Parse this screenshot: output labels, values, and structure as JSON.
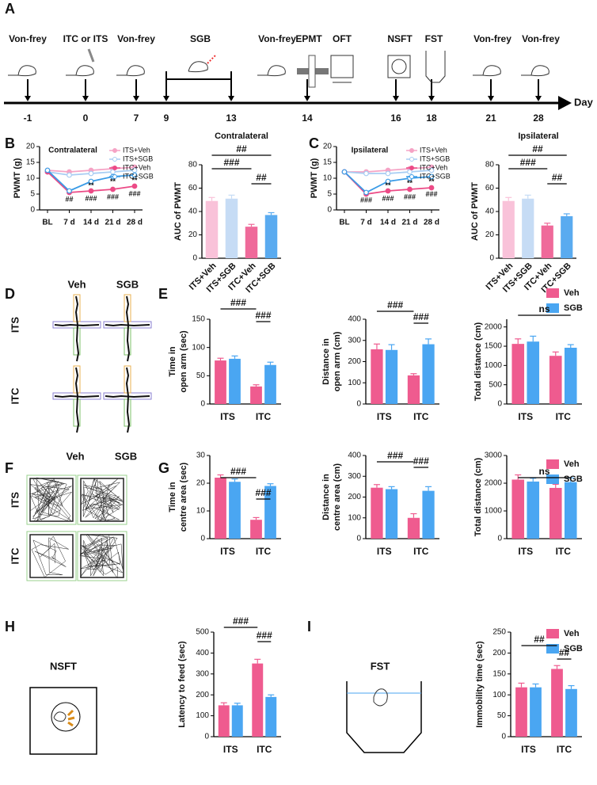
{
  "panels": [
    "A",
    "B",
    "C",
    "D",
    "E",
    "F",
    "G",
    "H",
    "I"
  ],
  "timeline": {
    "labels": [
      "Von-frey",
      "ITC or ITS",
      "Von-frey",
      "SGB",
      "Von-frey",
      "EPMT",
      "OFT",
      "NSFT",
      "FST",
      "Von-frey",
      "Von-frey"
    ],
    "days": [
      -1,
      0,
      7,
      9,
      13,
      14,
      16,
      18,
      21,
      28
    ],
    "unit": "Day"
  },
  "schematics": {
    "maze": {
      "columns": [
        "Veh",
        "SGB"
      ],
      "rows": [
        "ITS",
        "ITC"
      ]
    },
    "open_field": {
      "columns": [
        "Veh",
        "SGB"
      ],
      "rows": [
        "ITS",
        "ITC"
      ]
    },
    "nsft": "NSFT",
    "fst": "FST"
  },
  "chart_data": [
    {
      "type": "line",
      "title": "Contralateral",
      "ylabel": "PWMT (g)",
      "categories": [
        "BL",
        "7 d",
        "14 d",
        "21 d",
        "28 d"
      ],
      "ylim": [
        0,
        20
      ],
      "yticks": [
        0,
        5,
        10,
        15,
        20
      ],
      "series": [
        {
          "name": "ITS+Veh",
          "color": "#f5a3c5",
          "values": [
            12.5,
            12,
            12.5,
            13,
            13.5
          ]
        },
        {
          "name": "ITS+SGB",
          "color": "#a8cdf3",
          "values": [
            12,
            11,
            11.5,
            12,
            12.5
          ]
        },
        {
          "name": "ITC+Veh",
          "color": "#ec4a86",
          "values": [
            12,
            5.5,
            6,
            6.5,
            7.5
          ]
        },
        {
          "name": "ITC+SGB",
          "color": "#3a9be6",
          "values": [
            12.5,
            6,
            9,
            10.5,
            11
          ]
        }
      ],
      "annotations": [
        "##",
        "**",
        "**",
        "**",
        "###",
        "###",
        "###"
      ]
    },
    {
      "type": "bar",
      "title": "Contralateral",
      "ylabel": "AUC of PWMT",
      "categories": [
        "ITS+Veh",
        "ITS+SGB",
        "ITC+Veh",
        "ITC+SGB"
      ],
      "colors": [
        "#f9c2d9",
        "#c6dcf5",
        "#ef6a9a",
        "#5aabf0"
      ],
      "values": [
        49,
        51,
        27,
        37
      ],
      "errors": [
        3,
        3,
        2,
        2
      ],
      "ylim": [
        0,
        80
      ],
      "yticks": [
        0,
        20,
        40,
        60,
        80
      ],
      "annotations": [
        "##",
        "###",
        "##"
      ]
    },
    {
      "type": "line",
      "title": "Ipsilateral",
      "ylabel": "PWMT (g)",
      "categories": [
        "BL",
        "7 d",
        "14 d",
        "21 d",
        "28 d"
      ],
      "ylim": [
        0,
        20
      ],
      "yticks": [
        0,
        5,
        10,
        15,
        20
      ],
      "series": [
        {
          "name": "ITS+Veh",
          "color": "#f5a3c5",
          "values": [
            12,
            12,
            12.5,
            13,
            13.5
          ]
        },
        {
          "name": "ITS+SGB",
          "color": "#a8cdf3",
          "values": [
            12,
            11.5,
            11.5,
            12,
            12.5
          ]
        },
        {
          "name": "ITC+Veh",
          "color": "#ec4a86",
          "values": [
            12,
            5,
            6,
            6.5,
            7
          ]
        },
        {
          "name": "ITC+SGB",
          "color": "#3a9be6",
          "values": [
            12,
            5.5,
            9,
            10,
            10.5
          ]
        }
      ],
      "annotations": [
        "###",
        "**",
        "**",
        "**",
        "###",
        "###",
        "###"
      ]
    },
    {
      "type": "bar",
      "title": "Ipsilateral",
      "ylabel": "AUC of PWMT",
      "categories": [
        "ITS+Veh",
        "ITS+SGB",
        "ITC+Veh",
        "ITC+SGB"
      ],
      "colors": [
        "#f9c2d9",
        "#c6dcf5",
        "#ef6a9a",
        "#5aabf0"
      ],
      "values": [
        49,
        51,
        28,
        36
      ],
      "errors": [
        3,
        3,
        2,
        2
      ],
      "ylim": [
        0,
        80
      ],
      "yticks": [
        0,
        20,
        40,
        60,
        80
      ],
      "annotations": [
        "##",
        "###",
        "##"
      ]
    },
    {
      "type": "bar",
      "ylabel": [
        "Time in",
        "open arm (sec)"
      ],
      "categories": [
        "ITS",
        "ITC"
      ],
      "series": [
        {
          "color": "#ef5b8f",
          "values": [
            77,
            31
          ],
          "errors": [
            4,
            3
          ]
        },
        {
          "color": "#4aa6f2",
          "values": [
            80,
            69
          ],
          "errors": [
            5,
            5
          ]
        }
      ],
      "ylim": [
        0,
        150
      ],
      "yticks": [
        0,
        50,
        100,
        150
      ],
      "annotations": [
        "###",
        "###"
      ]
    },
    {
      "type": "bar",
      "ylabel": [
        "Distance in",
        "open arm (cm)"
      ],
      "categories": [
        "ITS",
        "ITC"
      ],
      "series": [
        {
          "color": "#ef5b8f",
          "values": [
            258,
            135
          ],
          "errors": [
            25,
            8
          ]
        },
        {
          "color": "#4aa6f2",
          "values": [
            255,
            282
          ],
          "errors": [
            25,
            25
          ]
        }
      ],
      "ylim": [
        0,
        400
      ],
      "yticks": [
        0,
        100,
        200,
        300,
        400
      ],
      "annotations": [
        "###",
        "###"
      ]
    },
    {
      "type": "bar",
      "ylabel": "Total distance (cm)",
      "categories": [
        "ITS",
        "ITC"
      ],
      "series": [
        {
          "name": "Veh",
          "color": "#ef5b8f",
          "values": [
            1560,
            1250
          ],
          "errors": [
            130,
            100
          ]
        },
        {
          "name": "SGB",
          "color": "#4aa6f2",
          "values": [
            1620,
            1460
          ],
          "errors": [
            140,
            80
          ]
        }
      ],
      "ylim": [
        0,
        2200
      ],
      "yticks": [
        0,
        500,
        1000,
        1500,
        2000
      ],
      "annotations": [
        "ns"
      ],
      "legend": "top-right"
    },
    {
      "type": "bar",
      "ylabel": [
        "Time in",
        "centre area (sec)"
      ],
      "categories": [
        "ITS",
        "ITC"
      ],
      "series": [
        {
          "color": "#ef5b8f",
          "values": [
            22,
            6.8
          ],
          "errors": [
            1,
            0.8
          ]
        },
        {
          "color": "#4aa6f2",
          "values": [
            20.5,
            19
          ],
          "errors": [
            1,
            0.8
          ]
        }
      ],
      "ylim": [
        0,
        30
      ],
      "yticks": [
        0,
        10,
        20,
        30
      ],
      "annotations": [
        "###",
        "###"
      ]
    },
    {
      "type": "bar",
      "ylabel": [
        "Distance in",
        "centre area (cm)"
      ],
      "categories": [
        "ITS",
        "ITC"
      ],
      "series": [
        {
          "color": "#ef5b8f",
          "values": [
            245,
            100
          ],
          "errors": [
            15,
            20
          ]
        },
        {
          "color": "#4aa6f2",
          "values": [
            238,
            230
          ],
          "errors": [
            12,
            20
          ]
        }
      ],
      "ylim": [
        0,
        400
      ],
      "yticks": [
        0,
        100,
        200,
        300,
        400
      ],
      "annotations": [
        "###",
        "###"
      ]
    },
    {
      "type": "bar",
      "ylabel": "Total distance (cm)",
      "categories": [
        "ITS",
        "ITC"
      ],
      "series": [
        {
          "name": "Veh",
          "color": "#ef5b8f",
          "values": [
            2130,
            1830
          ],
          "errors": [
            170,
            130
          ]
        },
        {
          "name": "SGB",
          "color": "#4aa6f2",
          "values": [
            2060,
            2040
          ],
          "errors": [
            120,
            150
          ]
        }
      ],
      "ylim": [
        0,
        3000
      ],
      "yticks": [
        0,
        1000,
        2000,
        3000
      ],
      "annotations": [
        "ns"
      ],
      "legend": "top-right"
    },
    {
      "type": "bar",
      "ylabel": "Latency to feed (sec)",
      "categories": [
        "ITS",
        "ITC"
      ],
      "series": [
        {
          "color": "#ef5b8f",
          "values": [
            150,
            350
          ],
          "errors": [
            12,
            20
          ]
        },
        {
          "color": "#4aa6f2",
          "values": [
            150,
            190
          ],
          "errors": [
            10,
            10
          ]
        }
      ],
      "ylim": [
        0,
        500
      ],
      "yticks": [
        0,
        100,
        200,
        300,
        400,
        500
      ],
      "annotations": [
        "###",
        "###"
      ]
    },
    {
      "type": "bar",
      "ylabel": "Immobility time (sec)",
      "categories": [
        "ITS",
        "ITC"
      ],
      "series": [
        {
          "name": "Veh",
          "color": "#ef5b8f",
          "values": [
            118,
            162
          ],
          "errors": [
            10,
            8
          ]
        },
        {
          "name": "SGB",
          "color": "#4aa6f2",
          "values": [
            118,
            114
          ],
          "errors": [
            8,
            8
          ]
        }
      ],
      "ylim": [
        0,
        250
      ],
      "yticks": [
        0,
        50,
        100,
        150,
        200,
        250
      ],
      "annotations": [
        "##",
        "##"
      ],
      "legend": "top-right"
    }
  ]
}
